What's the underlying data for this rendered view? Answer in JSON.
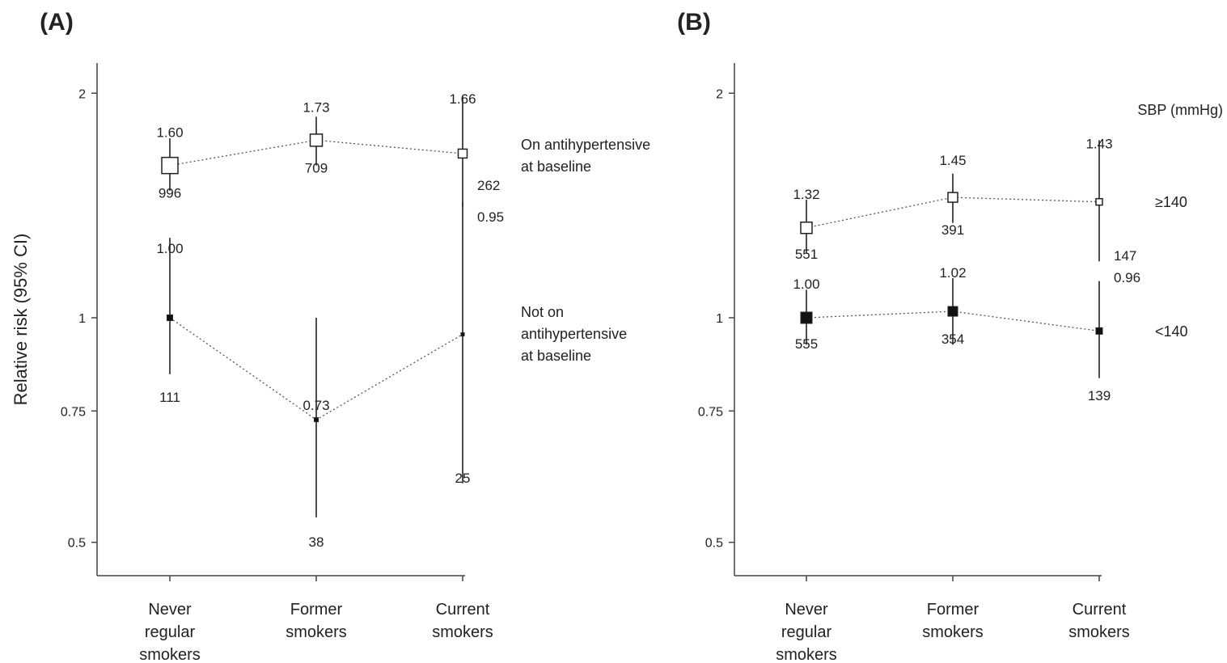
{
  "chart_data": [
    {
      "type": "scatter",
      "panel_label": "(A)",
      "ylabel": "Relative risk (95% CI)",
      "y_scale": "log",
      "ylim": [
        0.45,
        2.3
      ],
      "yticks": [
        0.5,
        0.75,
        1,
        2
      ],
      "ytick_labels": [
        "0.5",
        "0.75",
        "1",
        "2"
      ],
      "categories": [
        "Never\nregular\nsmokers",
        "Former\nsmokers",
        "Current\nsmokers"
      ],
      "series": [
        {
          "name": "On antihypertensive\nat baseline",
          "marker": "open-square",
          "values": [
            1.6,
            1.73,
            1.66
          ],
          "ci_low": [
            1.48,
            1.6,
            1.41
          ],
          "ci_high": [
            1.74,
            1.86,
            1.98
          ],
          "rr_labels": [
            "1.60",
            "1.73",
            "1.66"
          ],
          "counts": [
            "996",
            "709",
            "262"
          ],
          "marker_sizes": [
            20,
            15,
            11
          ]
        },
        {
          "name": "Not on\nantihypertensive\nat baseline",
          "marker": "filled-square",
          "values": [
            1.0,
            0.73,
            0.95
          ],
          "ci_low": [
            0.84,
            0.54,
            0.6
          ],
          "ci_high": [
            1.28,
            1.0,
            1.43
          ],
          "rr_labels": [
            "1.00",
            "0.73",
            "0.95"
          ],
          "counts": [
            "111",
            "38",
            "25"
          ],
          "marker_sizes": [
            7,
            5,
            4
          ]
        }
      ]
    },
    {
      "type": "scatter",
      "panel_label": "(B)",
      "y_scale": "log",
      "ylim": [
        0.45,
        2.3
      ],
      "yticks": [
        0.5,
        0.75,
        1,
        2
      ],
      "ytick_labels": [
        "0.5",
        "0.75",
        "1",
        "2"
      ],
      "categories": [
        "Never\nregular\nsmokers",
        "Former\nsmokers",
        "Current\nsmokers"
      ],
      "legend_title": "SBP (mmHg)",
      "series": [
        {
          "name": "≥140",
          "marker": "open-square",
          "values": [
            1.32,
            1.45,
            1.43
          ],
          "ci_low": [
            1.22,
            1.34,
            1.19
          ],
          "ci_high": [
            1.44,
            1.56,
            1.73
          ],
          "rr_labels": [
            "1.32",
            "1.45",
            "1.43"
          ],
          "counts": [
            "551",
            "391",
            "147"
          ],
          "marker_sizes": [
            14,
            12,
            8
          ]
        },
        {
          "name": "<140",
          "marker": "filled-square",
          "values": [
            1.0,
            1.02,
            0.96
          ],
          "ci_low": [
            0.92,
            0.92,
            0.83
          ],
          "ci_high": [
            1.09,
            1.13,
            1.12
          ],
          "rr_labels": [
            "1.00",
            "1.02",
            "0.96"
          ],
          "counts": [
            "555",
            "354",
            "139"
          ],
          "marker_sizes": [
            14,
            12,
            8
          ]
        }
      ]
    }
  ]
}
